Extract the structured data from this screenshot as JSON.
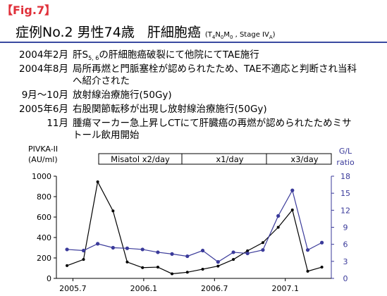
{
  "header": {
    "label": "【Fig.7】",
    "title": [
      "症例No.2 男性74歳",
      "肝細胞癌",
      "(T",
      "4",
      "N",
      "0",
      "M",
      "0",
      " , Stage IV",
      "A",
      ")"
    ]
  },
  "history": [
    {
      "date": "2004年2月",
      "text": [
        "肝S",
        "5, 6",
        "の肝細胞癌破裂にて他院にてTAE施行"
      ]
    },
    {
      "date": "2004年8月",
      "text": [
        "局所再燃と門脈塞栓が認められたため、TAE不適応と判断され当科",
        "へ紹介された"
      ]
    },
    {
      "date": "9月～10月",
      "text": [
        "放射線治療施行(50Gy)"
      ]
    },
    {
      "date": "2005年6月",
      "text": [
        "右股関節転移が出現し放射線治療施行(50Gy)"
      ]
    },
    {
      "date": "11月",
      "text": [
        "腫瘍マーカー急上昇しCTにて肝臓癌の再燃が認められたためミサ",
        "トール飲用開始"
      ]
    }
  ],
  "chart_data": {
    "type": "line",
    "ylabel": [
      "PIVKA-II",
      "(AU/ml)"
    ],
    "y2label": [
      "G/L",
      "ratio"
    ],
    "annotations": [
      "Misatol x2/day",
      "x1/day",
      "x3/day"
    ],
    "x": [
      -0.5,
      0.9,
      2.1,
      3.4,
      4.6,
      5.9,
      7.2,
      8.4,
      9.7,
      11.0,
      12.3,
      13.6,
      14.8,
      16.1,
      17.4,
      18.6,
      19.9,
      21.1
    ],
    "series": [
      {
        "color": "#000000",
        "values": [
          125,
          185,
          945,
          660,
          160,
          105,
          110,
          45,
          60,
          90,
          120,
          185,
          270,
          350,
          500,
          670,
          70,
          110
        ]
      },
      {
        "color": "#3a3a9a",
        "axis": "y2",
        "values": [
          5.1,
          4.9,
          6.1,
          5.4,
          5.3,
          5.1,
          4.6,
          4.3,
          3.9,
          4.9,
          2.9,
          4.6,
          4.4,
          5.0,
          11.0,
          15.5,
          5.0,
          6.3
        ]
      }
    ],
    "xlim": [
      -1.4,
      21.9
    ],
    "xticks": [
      {
        "value": 0,
        "label": "2005.7"
      },
      {
        "value": 6,
        "label": "2006.1"
      },
      {
        "value": 12,
        "label": "2006.7"
      },
      {
        "value": 18,
        "label": "2007.1"
      }
    ],
    "ylim": [
      0,
      1000
    ],
    "yticks": [
      0,
      200,
      400,
      600,
      800,
      1000
    ],
    "y2lim": [
      0,
      18
    ],
    "y2ticks": [
      0,
      3,
      6,
      9,
      12,
      15,
      18
    ]
  }
}
